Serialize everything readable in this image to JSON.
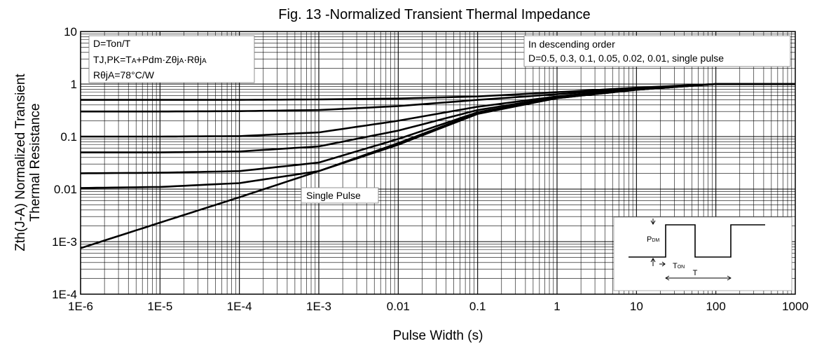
{
  "chart_data": {
    "type": "line",
    "title": "Fig. 13 -Normalized Transient Thermal Impedance",
    "xlabel": "Pulse Width (s)",
    "ylabel_line1": "Zth(J-A) Normalized Transient",
    "ylabel_line2": "Thermal Resistance",
    "x_scale": "log",
    "y_scale": "log",
    "xlim": [
      1e-06,
      1000
    ],
    "ylim": [
      0.0001,
      10
    ],
    "x_ticks": [
      {
        "value": 1e-06,
        "label": "1E-6"
      },
      {
        "value": 1e-05,
        "label": "1E-5"
      },
      {
        "value": 0.0001,
        "label": "1E-4"
      },
      {
        "value": 0.001,
        "label": "1E-3"
      },
      {
        "value": 0.01,
        "label": "0.01"
      },
      {
        "value": 0.1,
        "label": "0.1"
      },
      {
        "value": 1,
        "label": "1"
      },
      {
        "value": 10,
        "label": "10"
      },
      {
        "value": 100,
        "label": "100"
      },
      {
        "value": 1000,
        "label": "1000"
      }
    ],
    "y_ticks": [
      {
        "value": 0.0001,
        "label": "1E-4"
      },
      {
        "value": 0.001,
        "label": "1E-3"
      },
      {
        "value": 0.01,
        "label": "0.01"
      },
      {
        "value": 0.1,
        "label": "0.1"
      },
      {
        "value": 1,
        "label": "1"
      },
      {
        "value": 10,
        "label": "10"
      }
    ],
    "grid": true,
    "line_color": "#000000",
    "series": [
      {
        "x": [
          1e-06,
          1e-05,
          0.0001,
          0.001,
          0.01,
          0.1,
          1,
          10,
          100,
          1000
        ],
        "y": [
          0.5,
          0.5,
          0.5,
          0.51,
          0.53,
          0.58,
          0.7,
          0.85,
          1.0,
          1.0
        ]
      },
      {
        "x": [
          1e-06,
          1e-05,
          0.0001,
          0.001,
          0.01,
          0.1,
          1,
          10,
          100,
          1000
        ],
        "y": [
          0.3,
          0.3,
          0.305,
          0.32,
          0.38,
          0.5,
          0.64,
          0.82,
          1.0,
          1.0
        ]
      },
      {
        "x": [
          1e-06,
          1e-05,
          0.0001,
          0.001,
          0.01,
          0.1,
          1,
          10,
          100,
          1000
        ],
        "y": [
          0.1,
          0.1,
          0.102,
          0.12,
          0.2,
          0.37,
          0.58,
          0.8,
          1.0,
          1.0
        ]
      },
      {
        "x": [
          1e-06,
          1e-05,
          0.0001,
          0.001,
          0.01,
          0.1,
          1,
          10,
          100,
          1000
        ],
        "y": [
          0.05,
          0.05,
          0.052,
          0.065,
          0.13,
          0.32,
          0.56,
          0.79,
          1.0,
          1.0
        ]
      },
      {
        "x": [
          1e-06,
          1e-05,
          0.0001,
          0.001,
          0.01,
          0.1,
          1,
          10,
          100,
          1000
        ],
        "y": [
          0.02,
          0.0205,
          0.022,
          0.032,
          0.09,
          0.29,
          0.55,
          0.78,
          1.0,
          1.0
        ]
      },
      {
        "x": [
          1e-06,
          1e-05,
          0.0001,
          0.001,
          0.01,
          0.1,
          1,
          10,
          100,
          1000
        ],
        "y": [
          0.0105,
          0.011,
          0.013,
          0.022,
          0.075,
          0.28,
          0.54,
          0.78,
          1.0,
          1.0
        ]
      },
      {
        "x": [
          1e-06,
          1e-05,
          0.0001,
          0.001,
          0.01,
          0.1,
          1,
          10,
          100,
          1000
        ],
        "y": [
          0.00075,
          0.0023,
          0.007,
          0.022,
          0.07,
          0.27,
          0.54,
          0.78,
          1.0,
          1.0
        ]
      }
    ],
    "annotations": {
      "conditions_1": "D=Ton/T",
      "conditions_2_a": "TJ,PK=T",
      "conditions_2_sub_a": "A",
      "conditions_2_b": "+Pdm·Zθj",
      "conditions_2_sub_b": "A",
      "conditions_2_c": "·Rθj",
      "conditions_2_sub_c": "A",
      "conditions_3": "RθjA=78°C/W",
      "order_heading": "In descending order",
      "order_values": "D=0.5, 0.3, 0.1, 0.05, 0.02, 0.01, single pulse",
      "single_pulse_label": "Single Pulse",
      "inset_p": "P",
      "inset_p_sub": "DM",
      "inset_ton": "T",
      "inset_ton_sub": "ON",
      "inset_t": "T"
    }
  }
}
